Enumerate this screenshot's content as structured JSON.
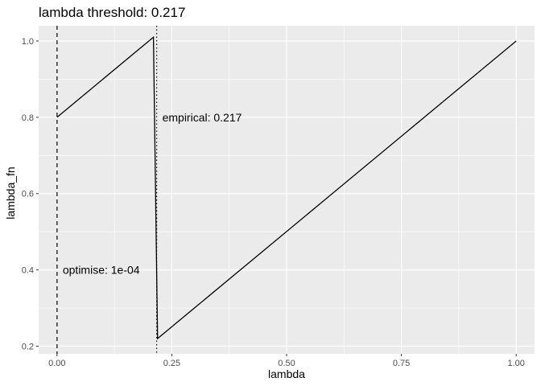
{
  "chart_data": {
    "type": "line",
    "title": "lambda threshold: 0.217",
    "xlabel": "lambda",
    "ylabel": "lambda_fn",
    "xlim": [
      -0.04,
      1.04
    ],
    "ylim": [
      0.18,
      1.04
    ],
    "x_ticks": [
      0.0,
      0.25,
      0.5,
      0.75,
      1.0
    ],
    "x_tick_labels": [
      "0.00",
      "0.25",
      "0.50",
      "0.75",
      "1.00"
    ],
    "y_ticks": [
      0.2,
      0.4,
      0.6,
      0.8,
      1.0
    ],
    "y_tick_labels": [
      "0.2",
      "0.4",
      "0.6",
      "0.8",
      "1.0"
    ],
    "grid": true,
    "series": [
      {
        "x": [
          0.0,
          0.21,
          0.219,
          1.0
        ],
        "y": [
          0.8,
          1.01,
          0.22,
          1.0
        ]
      }
    ],
    "vlines": [
      {
        "x": 0.0001,
        "style": "dashed"
      },
      {
        "x": 0.217,
        "style": "dotted"
      }
    ],
    "annotations": [
      {
        "text": "optimise: 1e-04",
        "x": 0.0001,
        "y": 0.4
      },
      {
        "text": "empirical: 0.217",
        "x": 0.217,
        "y": 0.8
      }
    ],
    "colors": {
      "panel": "#ebebeb",
      "grid": "#ffffff",
      "line": "#000000",
      "tick": "#4d4d4d"
    }
  }
}
